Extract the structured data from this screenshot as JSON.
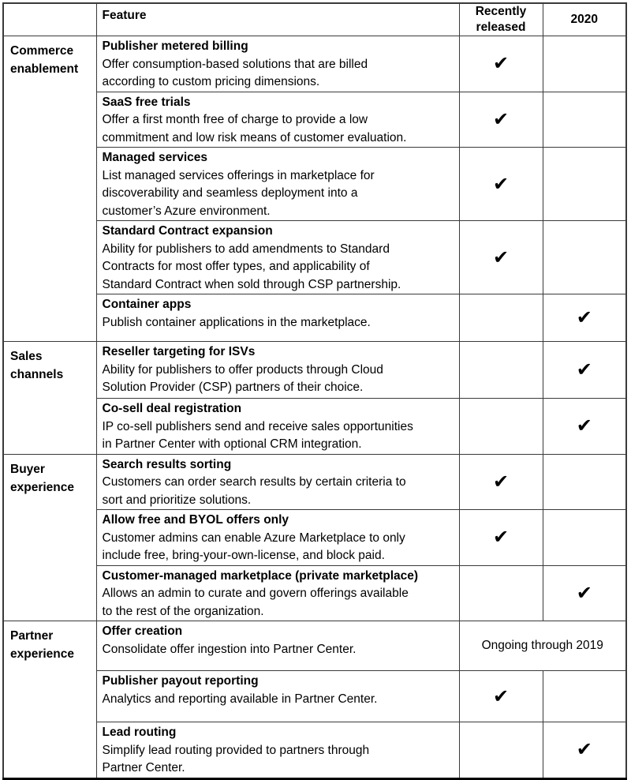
{
  "colors": {
    "border": "#3a3a3a",
    "outer_bottom_border": "#000000",
    "text": "#000000",
    "background": "#ffffff"
  },
  "icons": {
    "check_glyph": "✔"
  },
  "header": {
    "feature": "Feature",
    "recently": "Recently\nreleased",
    "y2020": "2020"
  },
  "rows": [
    {
      "category": "Commerce\nenablement",
      "title": "Publisher metered billing",
      "desc": "Offer consumption-based solutions that are billed\naccording to custom pricing dimensions.",
      "recently": "✔",
      "y2020": ""
    },
    {
      "title": "SaaS free trials",
      "desc": "Offer a first month free of charge to provide a low\ncommitment and low risk means of customer evaluation.",
      "recently": "✔",
      "y2020": ""
    },
    {
      "title": "Managed services",
      "desc": "List managed services offerings in marketplace for\ndiscoverability and seamless deployment into a\ncustomer’s Azure environment.",
      "recently": "✔",
      "y2020": ""
    },
    {
      "title": "Standard Contract expansion",
      "desc": "Ability for publishers to add amendments to Standard\nContracts for most offer types, and applicability of\nStandard Contract when sold through CSP partnership.",
      "recently": "✔",
      "y2020": ""
    },
    {
      "title": "Container apps",
      "desc": "Publish container applications in the marketplace.",
      "recently": "",
      "y2020": "✔"
    },
    {
      "category": "Sales\nchannels",
      "title": "Reseller targeting for ISVs",
      "desc": "Ability for publishers to offer products through Cloud\nSolution Provider (CSP) partners of their choice.",
      "recently": "",
      "y2020": "✔"
    },
    {
      "title": "Co-sell deal registration",
      "desc": "IP co-sell publishers send and receive sales opportunities\nin Partner Center with optional CRM integration.",
      "recently": "",
      "y2020": "✔"
    },
    {
      "category": "Buyer\nexperience",
      "title": "Search results sorting",
      "desc": "Customers can order search results by certain criteria to\nsort and prioritize solutions.",
      "recently": "✔",
      "y2020": ""
    },
    {
      "title": "Allow free and BYOL offers only",
      "desc": "Customer admins can enable Azure Marketplace to only\ninclude free, bring-your-own-license, and block paid.",
      "recently": "✔",
      "y2020": ""
    },
    {
      "title": "Customer-managed marketplace (private marketplace)",
      "desc": "Allows an admin to curate and govern offerings available\nto the rest of the organization.",
      "recently": "",
      "y2020": "✔"
    },
    {
      "category": "Partner\nexperience",
      "title": "Offer creation",
      "desc": "Consolidate offer ingestion into Partner Center.",
      "status": "Ongoing through 2019"
    },
    {
      "title": "Publisher payout reporting",
      "desc": "Analytics and reporting available in Partner Center.",
      "recently": "✔",
      "y2020": ""
    },
    {
      "title": "Lead routing",
      "desc": "Simplify lead routing provided to partners through\nPartner Center.",
      "recently": "",
      "y2020": "✔"
    }
  ]
}
